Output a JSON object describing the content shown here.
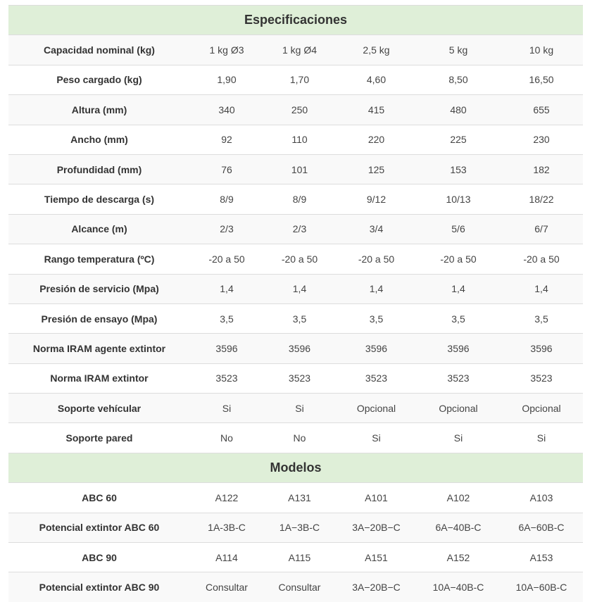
{
  "sections": [
    {
      "title": "Especificaciones",
      "rows": [
        {
          "label": "Capacidad nominal (kg)",
          "values": [
            "1 kg Ø3",
            "1 kg Ø4",
            "2,5 kg",
            "5 kg",
            "10 kg"
          ]
        },
        {
          "label": "Peso cargado (kg)",
          "values": [
            "1,90",
            "1,70",
            "4,60",
            "8,50",
            "16,50"
          ]
        },
        {
          "label": "Altura (mm)",
          "values": [
            "340",
            "250",
            "415",
            "480",
            "655"
          ]
        },
        {
          "label": "Ancho (mm)",
          "values": [
            "92",
            "110",
            "220",
            "225",
            "230"
          ]
        },
        {
          "label": "Profundidad (mm)",
          "values": [
            "76",
            "101",
            "125",
            "153",
            "182"
          ]
        },
        {
          "label": "Tiempo de descarga (s)",
          "values": [
            "8/9",
            "8/9",
            "9/12",
            "10/13",
            "18/22"
          ]
        },
        {
          "label": "Alcance (m)",
          "values": [
            "2/3",
            "2/3",
            "3/4",
            "5/6",
            "6/7"
          ]
        },
        {
          "label": "Rango temperatura (ºC)",
          "values": [
            "-20 a 50",
            "-20 a 50",
            "-20 a 50",
            "-20 a 50",
            "-20 a 50"
          ]
        },
        {
          "label": "Presión de servicio (Mpa)",
          "values": [
            "1,4",
            "1,4",
            "1,4",
            "1,4",
            "1,4"
          ]
        },
        {
          "label": "Presión de ensayo (Mpa)",
          "values": [
            "3,5",
            "3,5",
            "3,5",
            "3,5",
            "3,5"
          ]
        },
        {
          "label": "Norma IRAM agente extintor",
          "values": [
            "3596",
            "3596",
            "3596",
            "3596",
            "3596"
          ]
        },
        {
          "label": "Norma IRAM extintor",
          "values": [
            "3523",
            "3523",
            "3523",
            "3523",
            "3523"
          ]
        },
        {
          "label": "Soporte vehícular",
          "values": [
            "Si",
            "Si",
            "Opcional",
            "Opcional",
            "Opcional"
          ]
        },
        {
          "label": "Soporte pared",
          "values": [
            "No",
            "No",
            "Si",
            "Si",
            "Si"
          ]
        }
      ]
    },
    {
      "title": "Modelos",
      "rows": [
        {
          "label": "ABC 60",
          "values": [
            "A122",
            "A131",
            "A101",
            "A102",
            "A103"
          ]
        },
        {
          "label": "Potencial extintor ABC 60",
          "values": [
            "1A-3B-C",
            "1A−3B-C",
            "3A−20B−C",
            "6A−40B-C",
            "6A−60B-C"
          ]
        },
        {
          "label": "ABC 90",
          "values": [
            "A114",
            "A115",
            "A151",
            "A152",
            "A153"
          ]
        },
        {
          "label": "Potencial extintor ABC 90",
          "values": [
            "Consultar",
            "Consultar",
            "3A−20B−C",
            "10A−40B-C",
            "10A−60B-C"
          ]
        }
      ]
    }
  ]
}
